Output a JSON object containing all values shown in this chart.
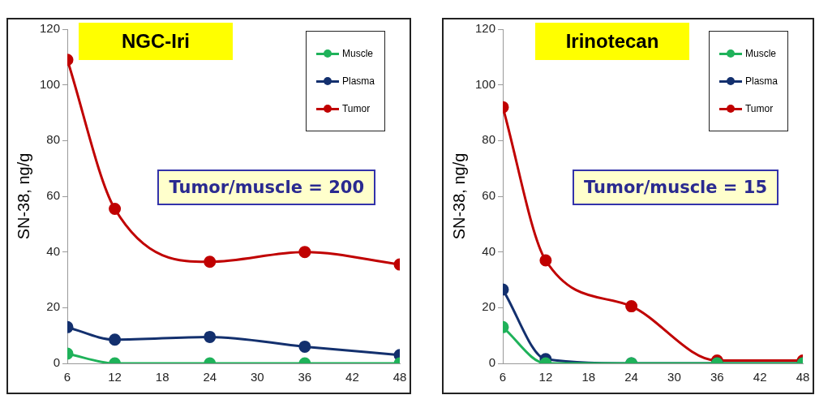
{
  "chart_data": [
    {
      "type": "line",
      "title": "NGC-Iri",
      "ylabel": "SN-38, ng/g",
      "x": [
        6,
        12,
        24,
        36,
        48
      ],
      "xlim": [
        6,
        48
      ],
      "xticks": [
        6,
        12,
        18,
        24,
        30,
        36,
        42,
        48
      ],
      "ylim": [
        0,
        120
      ],
      "yticks": [
        0,
        20,
        40,
        60,
        80,
        100,
        120
      ],
      "grid": false,
      "legend": "top right",
      "marker": "circle",
      "line_style": "solid",
      "annotations": [
        "Tumor/muscle = 200"
      ],
      "series": [
        {
          "name": "Muscle",
          "color": "#1fb25a",
          "values": [
            3.5,
            0,
            0,
            0,
            0
          ]
        },
        {
          "name": "Plasma",
          "color": "#13306e",
          "values": [
            13,
            8.5,
            9.5,
            6,
            3
          ]
        },
        {
          "name": "Tumor",
          "color": "#c00000",
          "values": [
            109,
            55.5,
            36.5,
            40,
            35.5
          ]
        }
      ]
    },
    {
      "type": "line",
      "title": "Irinotecan",
      "ylabel": "SN-38, ng/g",
      "x": [
        6,
        12,
        24,
        36,
        48
      ],
      "xlim": [
        6,
        48
      ],
      "xticks": [
        6,
        12,
        18,
        24,
        30,
        36,
        42,
        48
      ],
      "ylim": [
        0,
        120
      ],
      "yticks": [
        0,
        20,
        40,
        60,
        80,
        100,
        120
      ],
      "grid": false,
      "legend": "top right",
      "marker": "circle",
      "line_style": "solid",
      "annotations": [
        "Tumor/muscle = 15"
      ],
      "series": [
        {
          "name": "Muscle",
          "color": "#1fb25a",
          "values": [
            13,
            0,
            0,
            0,
            0
          ]
        },
        {
          "name": "Plasma",
          "color": "#13306e",
          "values": [
            26.5,
            1.5,
            0,
            0,
            0
          ]
        },
        {
          "name": "Tumor",
          "color": "#c00000",
          "values": [
            92,
            37,
            20.5,
            1,
            1
          ]
        }
      ]
    }
  ]
}
